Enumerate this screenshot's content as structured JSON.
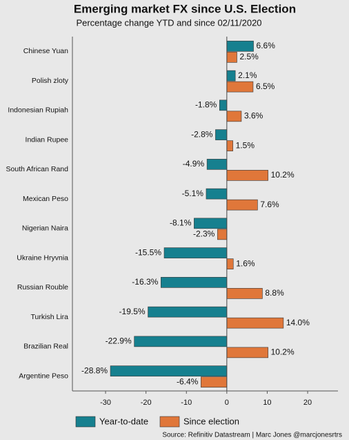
{
  "chart_data": {
    "type": "hbar",
    "title": "Emerging market FX since U.S. Election",
    "subtitle": "Percentage change YTD and since 02/11/2020",
    "source": "Source: Refinitiv Datastream | Marc Jones @marcjonesrtrs",
    "categories": [
      "Chinese Yuan",
      "Polish zloty",
      "Indonesian Rupiah",
      "Indian Rupee",
      "South African Rand",
      "Mexican Peso",
      "Nigerian Naira",
      "Ukraine Hryvnia",
      "Russian Rouble",
      "Turkish Lira",
      "Brazilian Real",
      "Argentine Peso"
    ],
    "series": [
      {
        "name": "Year-to-date",
        "color": "#16808f",
        "values": [
          6.6,
          2.1,
          -1.8,
          -2.8,
          -4.9,
          -5.1,
          -8.1,
          -15.5,
          -16.3,
          -19.5,
          -22.9,
          -28.8
        ],
        "value_labels": [
          "6.6%",
          "2.1%",
          "-1.8%",
          "-2.8%",
          "-4.9%",
          "-5.1%",
          "-8.1%",
          "-15.5%",
          "-16.3%",
          "-19.5%",
          "-22.9%",
          "-28.8%"
        ]
      },
      {
        "name": "Since election",
        "color": "#e0773a",
        "values": [
          2.5,
          6.5,
          3.6,
          1.5,
          10.2,
          7.6,
          -2.3,
          1.6,
          8.8,
          14.0,
          10.2,
          -6.4
        ],
        "value_labels": [
          "2.5%",
          "6.5%",
          "3.6%",
          "1.5%",
          "10.2%",
          "7.6%",
          "-2.3%",
          "1.6%",
          "8.8%",
          "14.0%",
          "10.2%",
          "-6.4%"
        ]
      }
    ],
    "xlim": [
      -38.2,
      27.5
    ],
    "xticks": [
      -30,
      -20,
      -10,
      0,
      10,
      20
    ]
  }
}
